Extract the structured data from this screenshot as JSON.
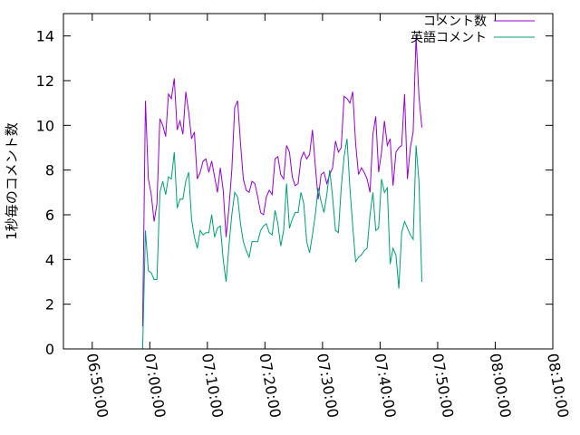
{
  "chart_data": {
    "type": "line",
    "title": "",
    "xlabel": "",
    "ylabel": "1秒毎のコメント数",
    "xlim": [
      "06:45:00",
      "08:10:00"
    ],
    "ylim": [
      0,
      15
    ],
    "x_ticks": [
      "06:50:00",
      "07:00:00",
      "07:10:00",
      "07:20:00",
      "07:30:00",
      "07:40:00",
      "07:50:00",
      "08:00:00",
      "08:10:00"
    ],
    "y_ticks": [
      0,
      2,
      4,
      6,
      8,
      10,
      12,
      14
    ],
    "grid": false,
    "legend_position": "top-right",
    "x_start": "06:58:45",
    "x_step_seconds": 30,
    "series": [
      {
        "name": "コメント数",
        "color": "#9400d3",
        "values": [
          1,
          11.1,
          7.6,
          6.9,
          5.7,
          6.5,
          10.3,
          10.0,
          9.5,
          11.4,
          11.2,
          12.1,
          9.8,
          10.2,
          9.6,
          11.5,
          10.6,
          9.4,
          9.7,
          7.6,
          7.9,
          8.4,
          8.5,
          7.9,
          8.4,
          7.7,
          7.0,
          8.1,
          7.1,
          5.0,
          6.3,
          8.0,
          10.8,
          11.1,
          9.2,
          7.6,
          7.1,
          7.0,
          7.5,
          7.4,
          6.8,
          6.1,
          6.0,
          6.8,
          7.1,
          6.9,
          8.5,
          8.6,
          7.8,
          7.6,
          9.1,
          8.8,
          7.7,
          7.3,
          7.4,
          8.5,
          8.8,
          8.5,
          8.7,
          9.8,
          8.2,
          6.7,
          7.8,
          7.9,
          7.4,
          7.8,
          8.1,
          9.3,
          8.8,
          9.0,
          11.3,
          11.2,
          11.0,
          11.5,
          9.2,
          7.8,
          8.1,
          7.9,
          7.6,
          7.0,
          9.6,
          10.4,
          7.9,
          8.8,
          10.2,
          9.1,
          9.4,
          7.3,
          8.8,
          9.0,
          9.1,
          11.4,
          7.6,
          9.0,
          9.7,
          14.0,
          11.3,
          9.9
        ]
      },
      {
        "name": "英語コメント",
        "color": "#009e73",
        "values": [
          0,
          5.3,
          3.5,
          3.4,
          3.1,
          3.1,
          7.0,
          7.5,
          6.9,
          7.7,
          7.6,
          8.8,
          6.3,
          6.7,
          6.7,
          7.5,
          7.9,
          5.8,
          5.0,
          4.5,
          5.3,
          5.1,
          5.2,
          5.2,
          6.0,
          5.0,
          5.4,
          5.5,
          4.0,
          3.0,
          4.6,
          6.0,
          7.0,
          6.8,
          5.6,
          4.8,
          4.4,
          4.1,
          4.8,
          4.8,
          4.8,
          5.3,
          5.5,
          5.6,
          5.2,
          5.1,
          6.2,
          5.6,
          4.6,
          5.3,
          7.4,
          5.4,
          5.8,
          6.1,
          6.1,
          7.0,
          6.5,
          4.8,
          4.3,
          5.1,
          6.0,
          7.2,
          6.6,
          6.1,
          6.9,
          8.0,
          6.8,
          5.3,
          5.2,
          7.2,
          8.6,
          9.4,
          7.2,
          5.5,
          3.9,
          4.1,
          4.2,
          4.4,
          4.5,
          6.0,
          7.0,
          5.3,
          5.4,
          7.6,
          7.0,
          7.2,
          3.8,
          4.5,
          4.2,
          2.7,
          5.2,
          5.7,
          5.4,
          5.1,
          4.9,
          9.1,
          7.5,
          3.0
        ]
      }
    ]
  }
}
